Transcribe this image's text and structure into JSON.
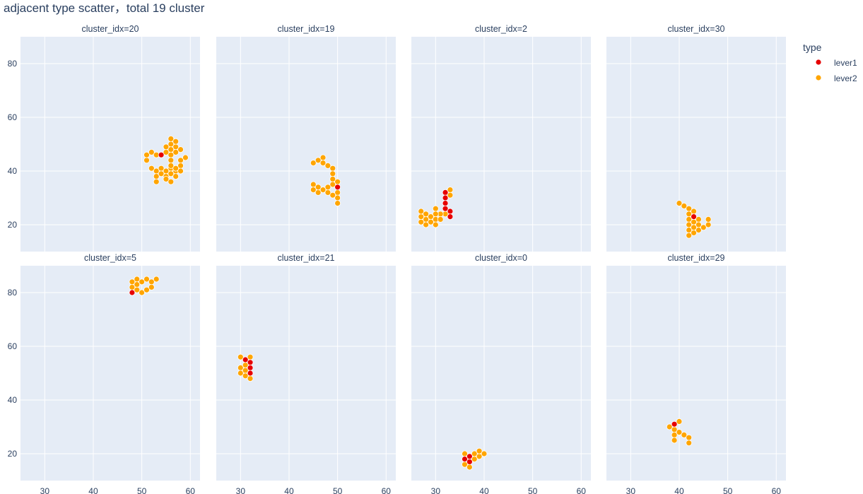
{
  "chart_data": {
    "type": "scatter",
    "title": "adjacent type scatter，total 19 cluster",
    "xlabel": "",
    "ylabel": "",
    "xlim": [
      25,
      62
    ],
    "ylim": [
      10,
      90
    ],
    "xticks": [
      30,
      40,
      50,
      60
    ],
    "yticks": [
      20,
      40,
      60,
      80
    ],
    "grid": true,
    "background": "#e5ecf6",
    "legend": {
      "title": "type",
      "placement": "top-right",
      "entries": [
        {
          "name": "lever1",
          "color": "#e60000"
        },
        {
          "name": "lever2",
          "color": "#ffa500"
        }
      ]
    },
    "facets": [
      {
        "title": "cluster_idx=20",
        "series": [
          {
            "name": "lever1",
            "points": [
              [
                54,
                46
              ]
            ]
          },
          {
            "name": "lever2",
            "points": [
              [
                51,
                44
              ],
              [
                51,
                46
              ],
              [
                52,
                47
              ],
              [
                53,
                46
              ],
              [
                55,
                47
              ],
              [
                55,
                49
              ],
              [
                56,
                50
              ],
              [
                56,
                52
              ],
              [
                57,
                49
              ],
              [
                57,
                51
              ],
              [
                58,
                48
              ],
              [
                56,
                48
              ],
              [
                57,
                47
              ],
              [
                56,
                46
              ],
              [
                59,
                45
              ],
              [
                58,
                44
              ],
              [
                56,
                44
              ],
              [
                58,
                42
              ],
              [
                52,
                41
              ],
              [
                53,
                40
              ],
              [
                54,
                41
              ],
              [
                55,
                40
              ],
              [
                56,
                41
              ],
              [
                57,
                40
              ],
              [
                58,
                40
              ],
              [
                53,
                38
              ],
              [
                54,
                39
              ],
              [
                55,
                38
              ],
              [
                56,
                39
              ],
              [
                57,
                38
              ],
              [
                53,
                36
              ],
              [
                55,
                37
              ],
              [
                56,
                36
              ],
              [
                57,
                41
              ],
              [
                56,
                42
              ]
            ]
          }
        ]
      },
      {
        "title": "cluster_idx=19",
        "series": [
          {
            "name": "lever1",
            "points": [
              [
                50,
                34
              ]
            ]
          },
          {
            "name": "lever2",
            "points": [
              [
                45,
                43
              ],
              [
                46,
                44
              ],
              [
                47,
                45
              ],
              [
                47,
                43
              ],
              [
                48,
                42
              ],
              [
                49,
                41
              ],
              [
                49,
                39
              ],
              [
                49,
                37
              ],
              [
                49,
                35
              ],
              [
                50,
                36
              ],
              [
                50,
                32
              ],
              [
                50,
                30
              ],
              [
                50,
                28
              ],
              [
                49,
                31
              ],
              [
                48,
                32
              ],
              [
                47,
                33
              ],
              [
                46,
                32
              ],
              [
                46,
                34
              ],
              [
                45,
                35
              ],
              [
                45,
                33
              ],
              [
                48,
                34
              ]
            ]
          }
        ]
      },
      {
        "title": "cluster_idx=2",
        "series": [
          {
            "name": "lever1",
            "points": [
              [
                32,
                32
              ],
              [
                32,
                30
              ],
              [
                32,
                28
              ],
              [
                32,
                26
              ],
              [
                33,
                25
              ],
              [
                33,
                23
              ]
            ]
          },
          {
            "name": "lever2",
            "points": [
              [
                33,
                33
              ],
              [
                33,
                31
              ],
              [
                32,
                24
              ],
              [
                31,
                24
              ],
              [
                30,
                26
              ],
              [
                30,
                24
              ],
              [
                29,
                23
              ],
              [
                30,
                22
              ],
              [
                29,
                21
              ],
              [
                28,
                22
              ],
              [
                28,
                20
              ],
              [
                27,
                21
              ],
              [
                27,
                23
              ],
              [
                27,
                25
              ],
              [
                28,
                24
              ],
              [
                30,
                20
              ],
              [
                31,
                22
              ]
            ]
          }
        ]
      },
      {
        "title": "cluster_idx=30",
        "series": [
          {
            "name": "lever1",
            "points": [
              [
                43,
                23
              ]
            ]
          },
          {
            "name": "lever2",
            "points": [
              [
                40,
                28
              ],
              [
                41,
                27
              ],
              [
                42,
                26
              ],
              [
                42,
                24
              ],
              [
                43,
                25
              ],
              [
                42,
                22
              ],
              [
                42,
                20
              ],
              [
                42,
                18
              ],
              [
                42,
                16
              ],
              [
                43,
                17
              ],
              [
                43,
                21
              ],
              [
                44,
                22
              ],
              [
                44,
                20
              ],
              [
                44,
                18
              ],
              [
                45,
                19
              ],
              [
                46,
                20
              ],
              [
                46,
                22
              ],
              [
                43,
                19
              ]
            ]
          }
        ]
      },
      {
        "title": "cluster_idx=5",
        "series": [
          {
            "name": "lever1",
            "points": [
              [
                48,
                80
              ]
            ]
          },
          {
            "name": "lever2",
            "points": [
              [
                48,
                82
              ],
              [
                48,
                84
              ],
              [
                49,
                85
              ],
              [
                49,
                83
              ],
              [
                49,
                81
              ],
              [
                50,
                80
              ],
              [
                50,
                84
              ],
              [
                51,
                85
              ],
              [
                51,
                81
              ],
              [
                52,
                82
              ],
              [
                52,
                84
              ],
              [
                53,
                85
              ]
            ]
          }
        ]
      },
      {
        "title": "cluster_idx=21",
        "series": [
          {
            "name": "lever1",
            "points": [
              [
                31,
                55
              ],
              [
                32,
                54
              ],
              [
                32,
                52
              ],
              [
                32,
                50
              ]
            ]
          },
          {
            "name": "lever2",
            "points": [
              [
                30,
                56
              ],
              [
                30,
                52
              ],
              [
                30,
                50
              ],
              [
                31,
                53
              ],
              [
                31,
                51
              ],
              [
                31,
                49
              ],
              [
                32,
                56
              ],
              [
                32,
                48
              ]
            ]
          }
        ]
      },
      {
        "title": "cluster_idx=0",
        "series": [
          {
            "name": "lever1",
            "points": [
              [
                36,
                18
              ],
              [
                37,
                17
              ],
              [
                37,
                19
              ]
            ]
          },
          {
            "name": "lever2",
            "points": [
              [
                36,
                20
              ],
              [
                36,
                16
              ],
              [
                37,
                15
              ],
              [
                38,
                18
              ],
              [
                38,
                20
              ],
              [
                39,
                19
              ],
              [
                39,
                21
              ],
              [
                40,
                20
              ]
            ]
          }
        ]
      },
      {
        "title": "cluster_idx=29",
        "series": [
          {
            "name": "lever1",
            "points": [
              [
                39,
                31
              ]
            ]
          },
          {
            "name": "lever2",
            "points": [
              [
                40,
                32
              ],
              [
                38,
                30
              ],
              [
                39,
                29
              ],
              [
                39,
                27
              ],
              [
                39,
                25
              ],
              [
                40,
                28
              ],
              [
                41,
                27
              ],
              [
                42,
                26
              ],
              [
                42,
                24
              ]
            ]
          }
        ]
      }
    ]
  }
}
